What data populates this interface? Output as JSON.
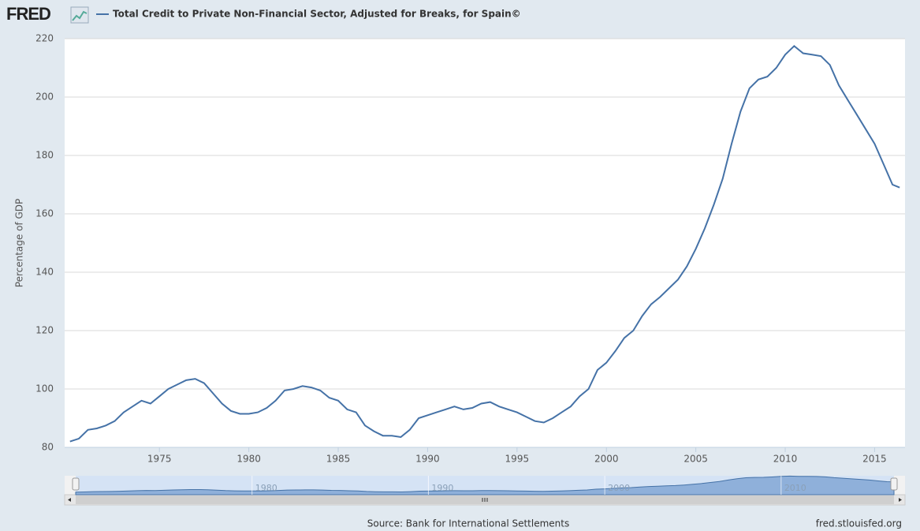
{
  "chart_data": {
    "type": "line",
    "brand": "FRED",
    "y_label": "Percentage of GDP",
    "source": "Source: Bank for International Settlements",
    "credit": "fred.stlouisfed.org",
    "x": [
      1970,
      1970.5,
      1971,
      1971.5,
      1972,
      1972.5,
      1973,
      1973.5,
      1974,
      1974.5,
      1975,
      1975.5,
      1976,
      1976.5,
      1977,
      1977.5,
      1978,
      1978.5,
      1979,
      1979.5,
      1980,
      1980.5,
      1981,
      1981.5,
      1982,
      1982.5,
      1983,
      1983.5,
      1984,
      1984.5,
      1985,
      1985.5,
      1986,
      1986.5,
      1987,
      1987.5,
      1988,
      1988.5,
      1989,
      1989.5,
      1990,
      1990.5,
      1991,
      1991.5,
      1992,
      1992.5,
      1993,
      1993.5,
      1994,
      1994.5,
      1995,
      1995.5,
      1996,
      1996.5,
      1997,
      1997.5,
      1998,
      1998.5,
      1999,
      1999.5,
      2000,
      2000.5,
      2001,
      2001.5,
      2002,
      2002.5,
      2003,
      2003.5,
      2004,
      2004.5,
      2005,
      2005.5,
      2006,
      2006.5,
      2007,
      2007.5,
      2008,
      2008.5,
      2009,
      2009.5,
      2010,
      2010.5,
      2011,
      2011.5,
      2012,
      2012.5,
      2013,
      2013.5,
      2014,
      2014.5,
      2015,
      2015.5,
      2016,
      2016.4
    ],
    "series": [
      {
        "name": "Total Credit to Private Non-Financial Sector, Adjusted for Breaks, for Spain©",
        "color": "#4572a7",
        "values": [
          82,
          83,
          86,
          86.5,
          87.5,
          89,
          92,
          94,
          96,
          95,
          97.5,
          100,
          101.5,
          103,
          103.5,
          102,
          98.5,
          95,
          92.5,
          91.5,
          91.5,
          92,
          93.5,
          96,
          99.5,
          100,
          101,
          100.5,
          99.5,
          97,
          96,
          93,
          92,
          87.5,
          85.5,
          84,
          84,
          83.5,
          86,
          90,
          91,
          92,
          93,
          94,
          93,
          93.5,
          95,
          95.5,
          94,
          93,
          92,
          90.5,
          89,
          88.5,
          90,
          92,
          94,
          97.5,
          100,
          106.5,
          109,
          113,
          117.5,
          120,
          125,
          129,
          131.5,
          134.5,
          137.5,
          142,
          148,
          155,
          163,
          172,
          184,
          195,
          203,
          206,
          207,
          210,
          214.5,
          217.5,
          215,
          214.5,
          214,
          211,
          204,
          199,
          194,
          189,
          184,
          177,
          170,
          169
        ]
      }
    ],
    "xlim": [
      1969.7,
      2016.7
    ],
    "xticks": [
      1975,
      1980,
      1985,
      1990,
      1995,
      2000,
      2005,
      2010,
      2015
    ],
    "ylim": [
      80,
      220
    ],
    "yticks": [
      80,
      100,
      120,
      140,
      160,
      180,
      200,
      220
    ],
    "grid": true,
    "navigator_ticks": [
      1980,
      1990,
      2000,
      2010
    ]
  }
}
